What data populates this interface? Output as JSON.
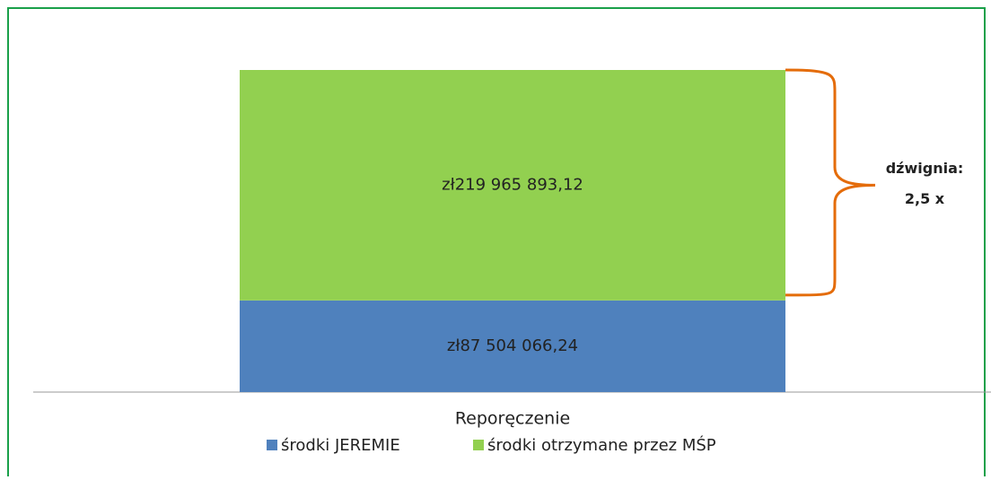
{
  "chart_data": {
    "type": "stacked_bar",
    "categories": [
      "Reporęczenie"
    ],
    "series": [
      {
        "name": "środki JEREMIE",
        "color": "#4f81bd",
        "values": [
          87504066.24
        ],
        "value_labels": [
          "zł87 504 066,24"
        ]
      },
      {
        "name": "środki otrzymane przez MŚP",
        "color": "#92d050",
        "values": [
          219965893.12
        ],
        "value_labels": [
          "zł219 965 893,12"
        ]
      }
    ],
    "annotation": [
      "dźwignia:",
      "2,5 x"
    ],
    "legend": "bottom"
  }
}
